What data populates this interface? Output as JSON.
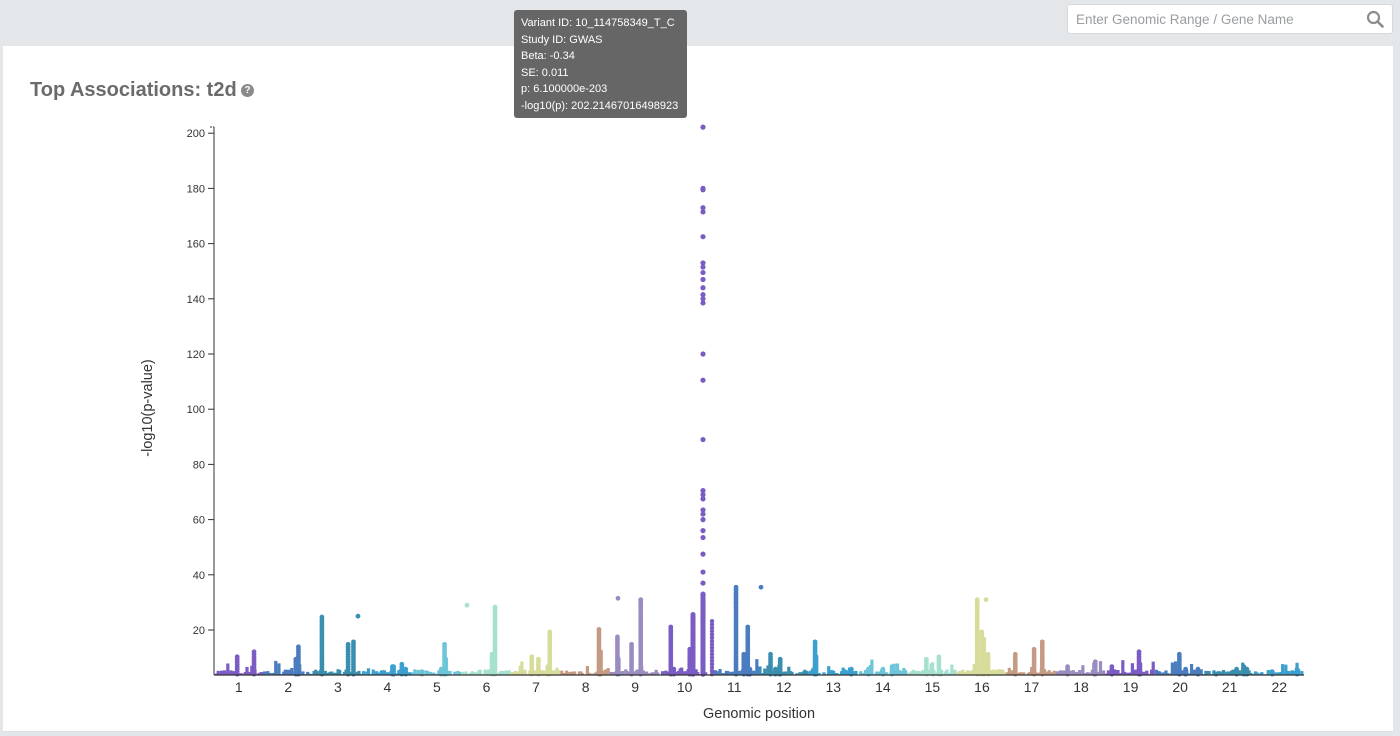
{
  "header": {
    "search": {
      "placeholder": "Enter Genomic Range / Gene Name",
      "value": "",
      "icon": "search-icon"
    }
  },
  "card": {
    "title": "Top Associations: t2d",
    "help_icon": "question-circle-icon",
    "help_glyph": "?"
  },
  "tooltip": {
    "lines": [
      "Variant ID: 10_114758349_T_C",
      "Study ID: GWAS",
      "Beta: -0.34",
      "SE: 0.011",
      "p: 6.100000e-203",
      "-log10(p): 202.21467016498923"
    ]
  },
  "chart_data": {
    "type": "scatter",
    "title": "Top Associations: t2d",
    "xlabel": "Genomic position",
    "ylabel": "-log10(p-value)",
    "ylim": [
      3.6,
      202.2
    ],
    "yticks": [
      20,
      40,
      60,
      80,
      100,
      120,
      140,
      160,
      180,
      200
    ],
    "grid": false,
    "legend": "none",
    "categories": [
      "1",
      "2",
      "3",
      "4",
      "5",
      "6",
      "7",
      "8",
      "9",
      "10",
      "11",
      "12",
      "13",
      "14",
      "15",
      "16",
      "17",
      "18",
      "19",
      "20",
      "21",
      "22"
    ],
    "chromosome_colors": [
      "#7b5cc4",
      "#4a7cc0",
      "#3a8fb0",
      "#3aa0d0",
      "#6cc5d8",
      "#a6e0cf",
      "#d8dc9a",
      "#c49a82",
      "#9a8cc0",
      "#7b5cc4",
      "#4a7cc0",
      "#3a8fb0",
      "#3aa0d0",
      "#6cc5d8",
      "#a6e0cf",
      "#d8dc9a",
      "#c49a82",
      "#9a8cc0",
      "#7b5cc4",
      "#4a7cc0",
      "#3a8fb0",
      "#3aa0d0"
    ],
    "peak_max_per_chromosome": [
      12.5,
      14.5,
      25,
      7,
      15,
      29,
      20,
      21,
      31.5,
      202.2,
      36,
      11.5,
      16.5,
      6,
      10.5,
      31,
      16.5,
      9,
      12.5,
      11.5,
      4,
      5.5
    ],
    "highlighted_point": {
      "chromosome": "10",
      "variant": "10_114758349_T_C",
      "value": 202.21467016498923
    },
    "chr10_top_points": [
      202.2,
      180,
      179.5,
      173,
      171.5,
      162.5,
      153,
      151.5,
      149.5,
      147,
      144,
      141.5,
      140,
      138.5,
      120,
      110.5,
      89,
      70.5,
      69,
      67.5,
      63.5,
      62,
      60,
      56,
      53.5,
      47.5,
      41,
      37,
      33
    ],
    "other_points": [
      {
        "chromosome": "11",
        "value": 35.5
      },
      {
        "chromosome": "3",
        "value": 25
      },
      {
        "chromosome": "6",
        "value": 29
      },
      {
        "chromosome": "9",
        "value": 31.5
      },
      {
        "chromosome": "16",
        "value": 31
      }
    ]
  }
}
